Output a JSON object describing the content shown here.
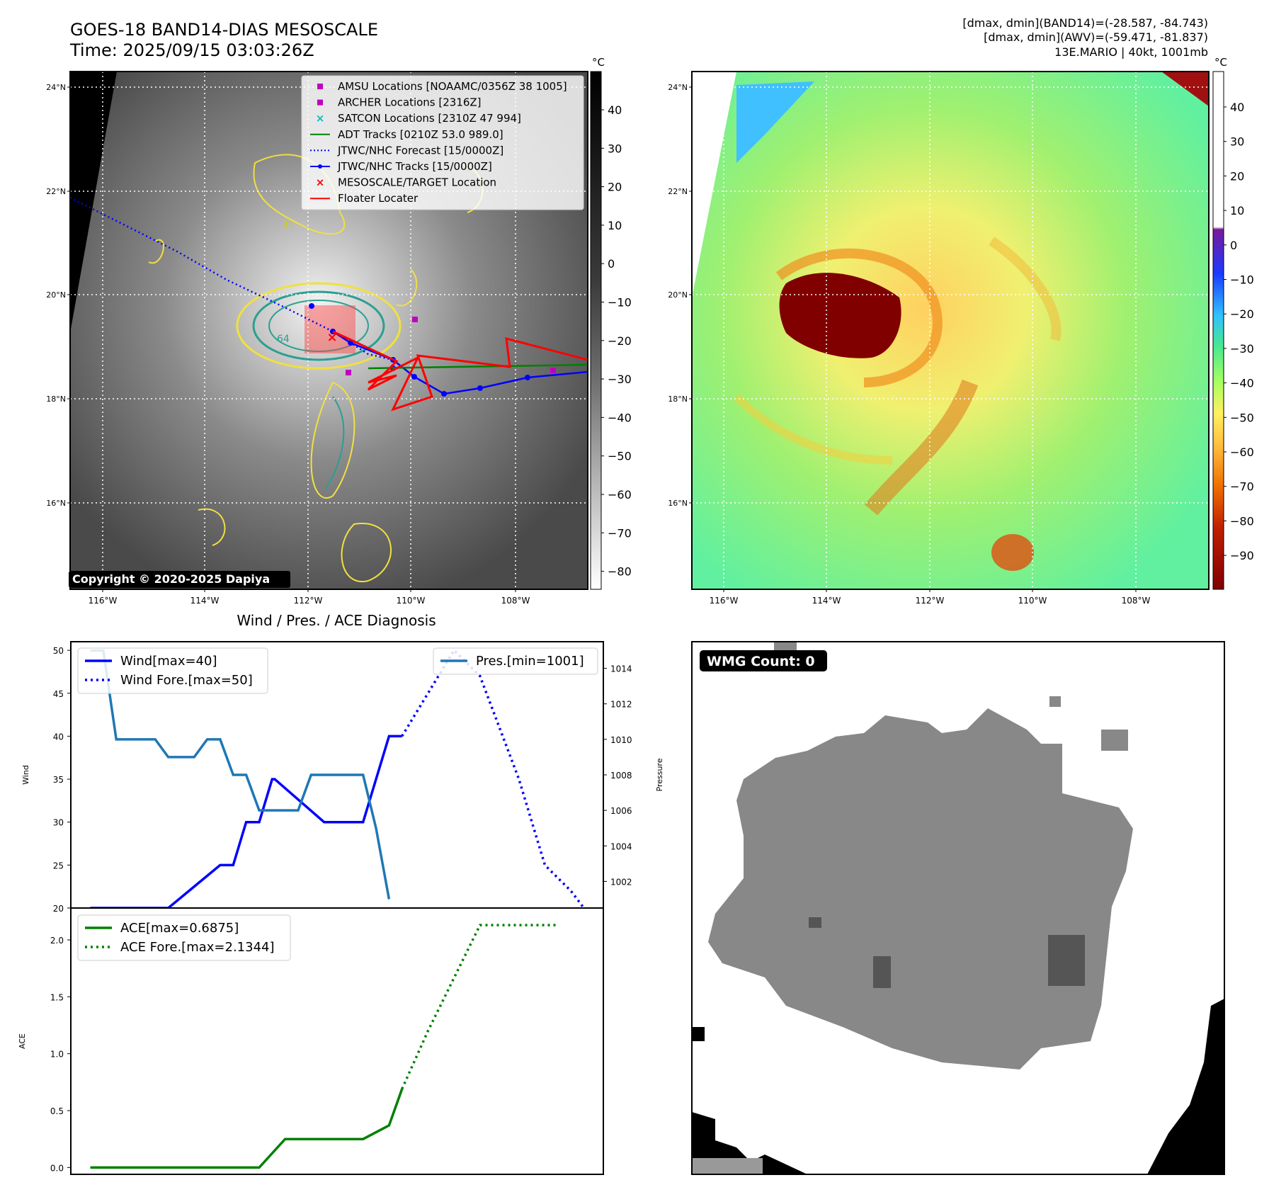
{
  "header": {
    "title": "GOES-18 BAND14-DIAS MESOSCALE",
    "time": "Time: 2025/09/15 03:03:26Z",
    "info_line1": "[dmax, dmin](BAND14)=(-28.587, -84.743)",
    "info_line2": "[dmax, dmin](AWV)=(-59.471, -81.837)",
    "info_line3": "13E.MARIO | 40kt, 1001mb"
  },
  "map": {
    "lat_labels": [
      "24°N",
      "22°N",
      "20°N",
      "18°N",
      "16°N"
    ],
    "lon_labels": [
      "116°W",
      "114°W",
      "112°W",
      "110°W",
      "108°W"
    ],
    "legend": [
      {
        "label": "AMSU Locations [NOAAMC/0356Z 38 1005]",
        "color": "#c000c0",
        "marker": "square"
      },
      {
        "label": "ARCHER Locations [2316Z]",
        "color": "#c000c0",
        "marker": "square"
      },
      {
        "label": "SATCON Locations [2310Z 47 994]",
        "color": "#00bfbf",
        "marker": "x"
      },
      {
        "label": "ADT Tracks [0210Z 53.0 989.0]",
        "color": "#008000",
        "marker": "line"
      },
      {
        "label": "JTWC/NHC Forecast [15/0000Z]",
        "color": "#0000ff",
        "marker": "dotted"
      },
      {
        "label": "JTWC/NHC Tracks [15/0000Z]",
        "color": "#0000ff",
        "marker": "line-dot"
      },
      {
        "label": "MESOSCALE/TARGET Location",
        "color": "#ff0000",
        "marker": "x"
      },
      {
        "label": "Floater Locater",
        "color": "#ff0000",
        "marker": "line"
      }
    ],
    "copyright": "Copyright © 2020-2025 Dapiya",
    "contour_labels": [
      "31",
      "64"
    ],
    "colorbar_unit": "°C",
    "gray_colorbar_ticks": [
      "40",
      "30",
      "20",
      "10",
      "0",
      "−10",
      "−20",
      "−30",
      "−40",
      "−50",
      "−60",
      "−70",
      "−80"
    ],
    "color_colorbar_ticks": [
      "40",
      "30",
      "20",
      "10",
      "0",
      "−10",
      "−20",
      "−30",
      "−40",
      "−50",
      "−60",
      "−70",
      "−80",
      "−90"
    ]
  },
  "wmg": {
    "label": "WMG Count: 0"
  },
  "chart_data": [
    {
      "type": "line",
      "title": "Wind / Pres. / ACE Diagnosis",
      "ylabel": "Wind",
      "ylabel2": "Pressure",
      "ylim": [
        20,
        51
      ],
      "y2lim": [
        1000.5,
        1015.5
      ],
      "yticks": [
        "50",
        "45",
        "40",
        "35",
        "30",
        "25",
        "20"
      ],
      "y2ticks": [
        "1014",
        "1012",
        "1010",
        "1008",
        "1006",
        "1004",
        "1002"
      ],
      "series": [
        {
          "name": "Wind[max=40]",
          "color": "#0000ff",
          "style": "solid",
          "axis": "left",
          "x": [
            0,
            5,
            6,
            10,
            11,
            12,
            13,
            14,
            14.2,
            18,
            18.5,
            19,
            21,
            23,
            24
          ],
          "values": [
            20,
            20,
            20,
            25,
            25,
            30,
            30,
            35,
            35,
            30,
            30,
            30,
            30,
            40,
            40
          ]
        },
        {
          "name": "Wind Fore.[max=50]",
          "color": "#0000ff",
          "style": "dotted",
          "axis": "left",
          "x": [
            24,
            28,
            30,
            33,
            35,
            37,
            38
          ],
          "values": [
            40,
            50,
            47,
            35,
            25,
            22,
            20
          ]
        },
        {
          "name": "Pres.[min=1001]",
          "color": "#1f77b4",
          "style": "solid",
          "axis": "right",
          "x": [
            0,
            1,
            2,
            5,
            6,
            8,
            9,
            10,
            11,
            12,
            13,
            16,
            17,
            18,
            19,
            20,
            21,
            22,
            23
          ],
          "values": [
            1015,
            1015,
            1010,
            1010,
            1009,
            1009,
            1010,
            1010,
            1008,
            1008,
            1006,
            1006,
            1008,
            1008,
            1008,
            1008,
            1008,
            1005,
            1001
          ]
        }
      ]
    },
    {
      "type": "line",
      "ylabel": "ACE",
      "ylim": [
        -0.06,
        2.28
      ],
      "yticks": [
        "2.0",
        "1.5",
        "1.0",
        "0.5",
        "0.0"
      ],
      "series": [
        {
          "name": "ACE[max=0.6875]",
          "color": "#008000",
          "style": "solid",
          "x": [
            0,
            13,
            15,
            18,
            20,
            21,
            23,
            24
          ],
          "values": [
            0,
            0,
            0.25,
            0.25,
            0.25,
            0.25,
            0.37,
            0.69
          ]
        },
        {
          "name": "ACE Fore.[max=2.1344]",
          "color": "#008000",
          "style": "dotted",
          "x": [
            24,
            26,
            30,
            32,
            36
          ],
          "values": [
            0.69,
            1.2,
            2.13,
            2.13,
            2.13
          ]
        }
      ]
    }
  ]
}
